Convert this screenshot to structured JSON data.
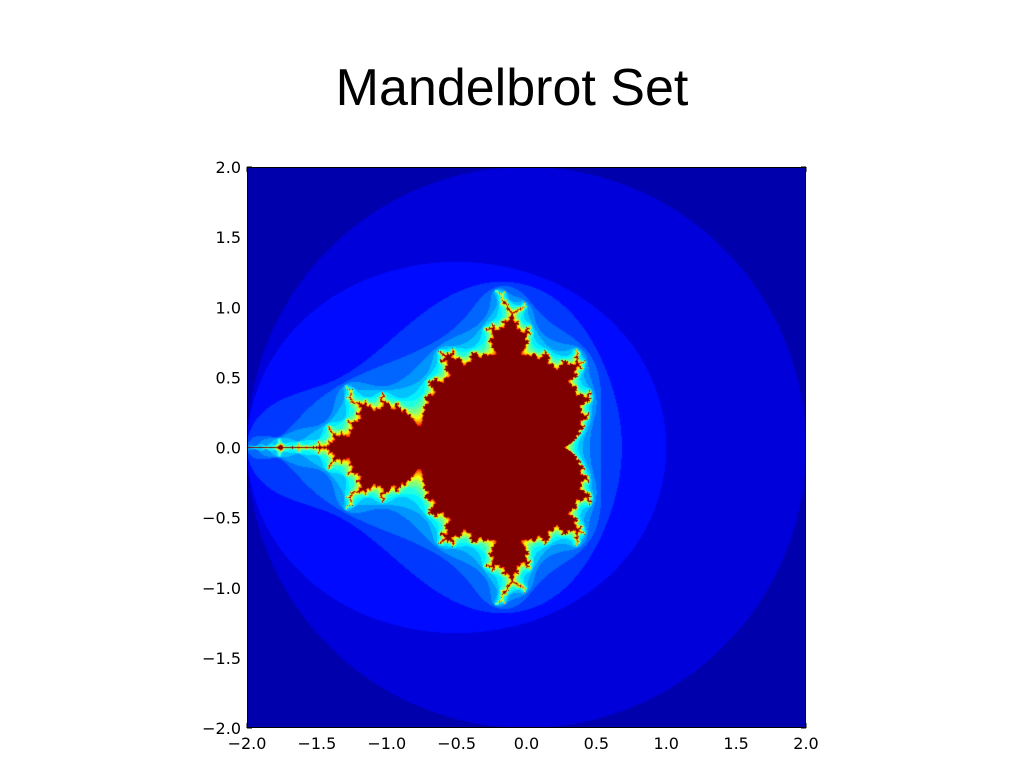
{
  "slide": {
    "title": "Mandelbrot Set"
  },
  "chart_data": {
    "type": "heatmap",
    "title": "",
    "xlabel": "",
    "ylabel": "",
    "xlim": [
      -2.0,
      2.0
    ],
    "ylim": [
      -2.0,
      2.0
    ],
    "grid": false,
    "colormap": "jet",
    "max_iterations": 20,
    "inside_color": "#800000",
    "xticks": [
      {
        "value": -2.0,
        "label": "−2.0"
      },
      {
        "value": -1.5,
        "label": "−1.5"
      },
      {
        "value": -1.0,
        "label": "−1.0"
      },
      {
        "value": -0.5,
        "label": "−0.5"
      },
      {
        "value": 0.0,
        "label": "0.0"
      },
      {
        "value": 0.5,
        "label": "0.5"
      },
      {
        "value": 1.0,
        "label": "1.0"
      },
      {
        "value": 1.5,
        "label": "1.5"
      },
      {
        "value": 2.0,
        "label": "2.0"
      }
    ],
    "yticks": [
      {
        "value": 2.0,
        "label": "2.0"
      },
      {
        "value": 1.5,
        "label": "1.5"
      },
      {
        "value": 1.0,
        "label": "1.0"
      },
      {
        "value": 0.5,
        "label": "0.5"
      },
      {
        "value": 0.0,
        "label": "0.0"
      },
      {
        "value": -0.5,
        "label": "−0.5"
      },
      {
        "value": -1.0,
        "label": "−1.0"
      },
      {
        "value": -1.5,
        "label": "−1.5"
      },
      {
        "value": -2.0,
        "label": "−2.0"
      }
    ]
  }
}
